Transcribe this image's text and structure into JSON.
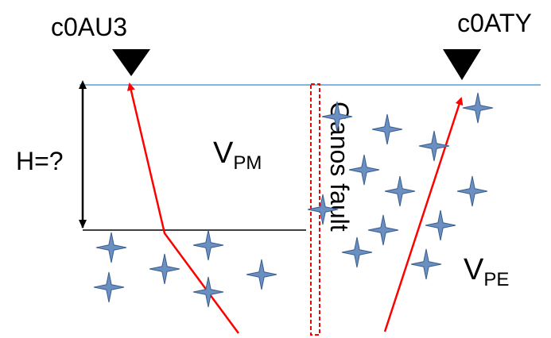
{
  "stations": {
    "left": {
      "name": "c0AU3"
    },
    "right": {
      "name": "c0ATY"
    }
  },
  "depth_label": "H=?",
  "velocities": {
    "middle": {
      "base": "V",
      "sub": "PM"
    },
    "east": {
      "base": "V",
      "sub": "PE"
    }
  },
  "fault_label": "Ganos fault",
  "colors": {
    "ray": "#ff0000",
    "surface": "#5b9bd5",
    "fault": "#ff0000",
    "star_fill": "#6b8fc0",
    "star_stroke": "#3a5f8f",
    "text": "#000000"
  }
}
